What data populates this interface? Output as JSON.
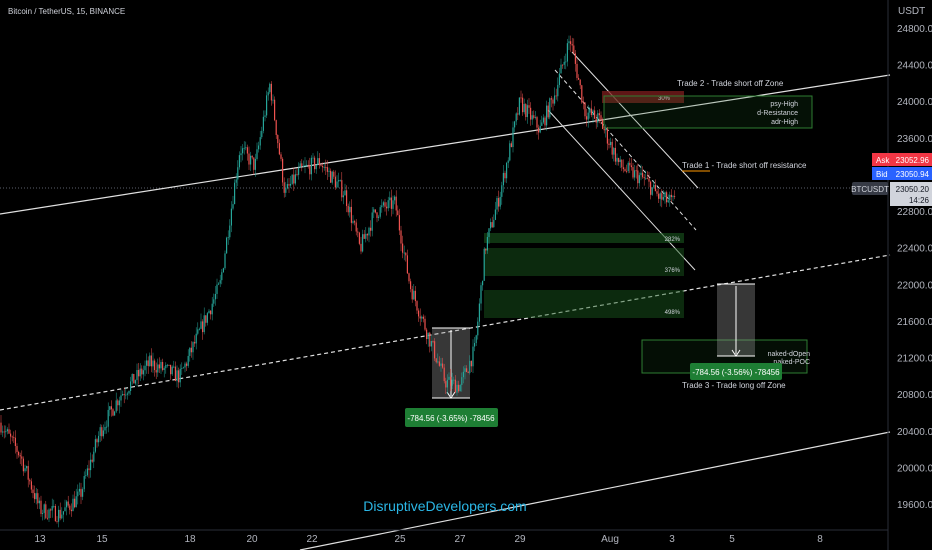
{
  "header": {
    "title": "Bitcoin / TetherUS, 15, BINANCE"
  },
  "price_axis": {
    "currency": "USDT",
    "ticks": [
      "24800.00",
      "24400.00",
      "24000.00",
      "23600.00",
      "23200.00",
      "22800.00",
      "22400.00",
      "22000.00",
      "21600.00",
      "21200.00",
      "20800.00",
      "20400.00",
      "20000.00",
      "19600.00"
    ]
  },
  "time_axis": {
    "ticks": [
      "13",
      "15",
      "18",
      "20",
      "22",
      "25",
      "27",
      "29",
      "Aug",
      "3",
      "5",
      "8"
    ]
  },
  "quotes": {
    "ask_label": "Ask",
    "ask_value": "23052.96",
    "bid_label": "Bid",
    "bid_value": "23050.94",
    "symbol": "BTCUSDT",
    "last_value": "23050.20",
    "countdown": "14:26"
  },
  "annotations": {
    "trade1": "Trade 1 - Trade short off resistance",
    "trade2": "Trade 2 - Trade short off Zone",
    "trade3": "Trade 3 - Trade long off Zone",
    "zone_labels": [
      "psy-High",
      "d-Resistance",
      "adr-High"
    ],
    "naked_labels": [
      "naked-dOpen",
      "naked-POC"
    ],
    "pct_labels": [
      "30%",
      "282%",
      "376%",
      "498%"
    ],
    "measure1": "-784.56 (-3.65%) -78456",
    "measure2": "-784.56 (-3.56%) -78456",
    "watermark": "DisruptiveDevelopers.com"
  },
  "colors": {
    "up": "#26a69a",
    "down": "#ef5350",
    "ask": "#f23645",
    "bid": "#2962ff",
    "zone_green": "#1b5e20",
    "zone_red": "#7f1d1d",
    "accent_text": "#2bb7e6",
    "measure_bg": "#1e7e34"
  },
  "chart_data": {
    "type": "candlestick",
    "title": "Bitcoin / TetherUS, 15, BINANCE",
    "xlabel": "",
    "ylabel": "USDT",
    "ylim": [
      19300,
      25100
    ],
    "x_ticks": [
      "13",
      "15",
      "18",
      "20",
      "22",
      "25",
      "27",
      "29",
      "Aug",
      "3",
      "5",
      "8"
    ],
    "path": [
      [
        0,
        20500
      ],
      [
        20,
        20150
      ],
      [
        40,
        19550
      ],
      [
        60,
        19500
      ],
      [
        80,
        19700
      ],
      [
        100,
        20400
      ],
      [
        120,
        20800
      ],
      [
        150,
        21150
      ],
      [
        180,
        21000
      ],
      [
        200,
        21500
      ],
      [
        220,
        22000
      ],
      [
        240,
        23500
      ],
      [
        255,
        23300
      ],
      [
        270,
        24200
      ],
      [
        285,
        23000
      ],
      [
        300,
        23250
      ],
      [
        320,
        23350
      ],
      [
        345,
        23000
      ],
      [
        360,
        22400
      ],
      [
        375,
        22800
      ],
      [
        395,
        22900
      ],
      [
        410,
        22000
      ],
      [
        430,
        21400
      ],
      [
        445,
        20950
      ],
      [
        460,
        20900
      ],
      [
        475,
        21300
      ],
      [
        485,
        22400
      ],
      [
        500,
        23000
      ],
      [
        520,
        24000
      ],
      [
        540,
        23700
      ],
      [
        555,
        24100
      ],
      [
        570,
        24700
      ],
      [
        585,
        23900
      ],
      [
        600,
        23800
      ],
      [
        620,
        23300
      ],
      [
        645,
        23150
      ],
      [
        660,
        22950
      ],
      [
        675,
        22900
      ]
    ],
    "last_price": 23050.2,
    "ask": 23052.96,
    "bid": 23050.94
  }
}
